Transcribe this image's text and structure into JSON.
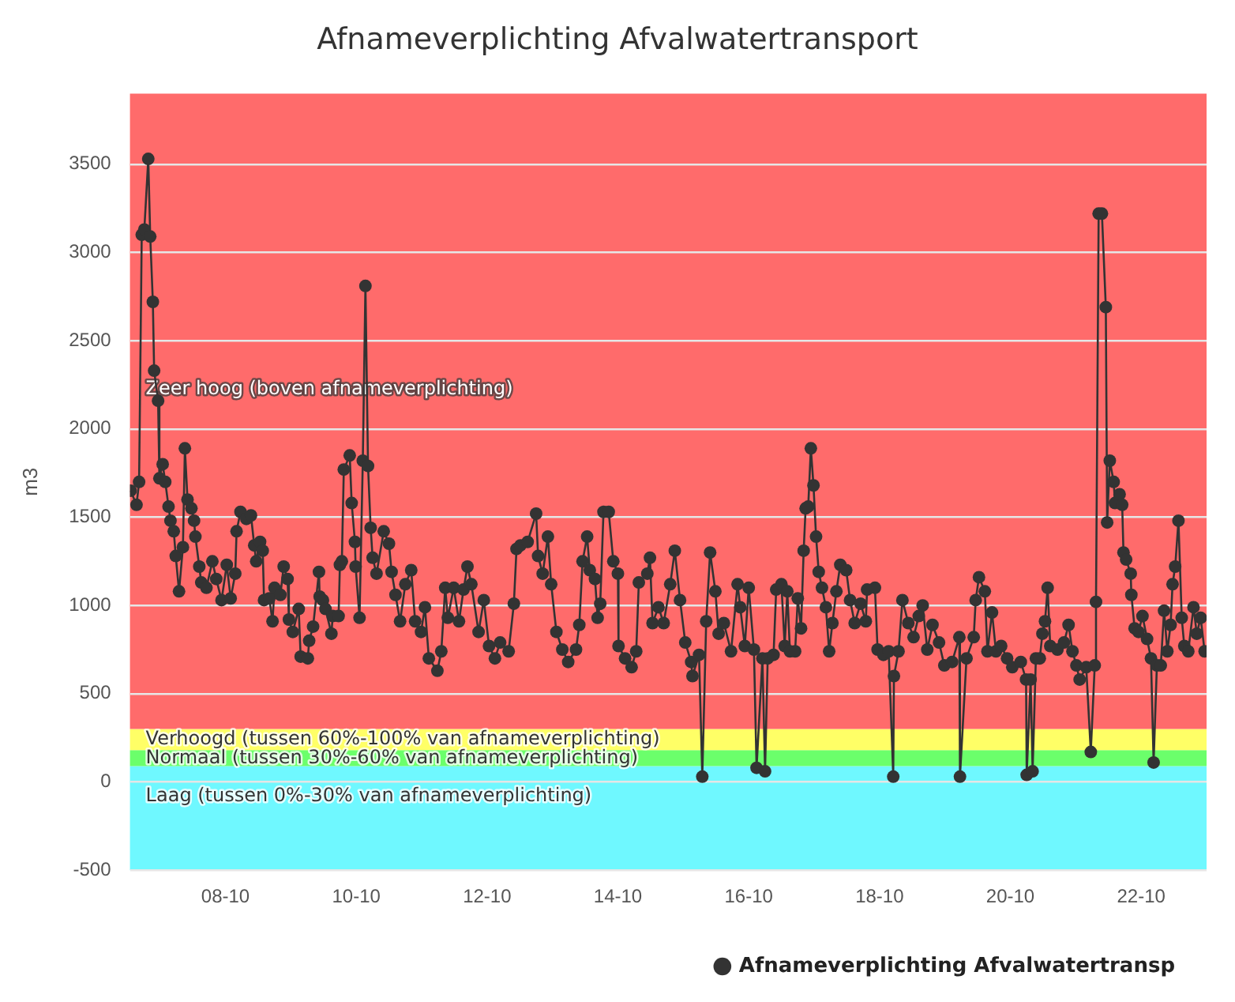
{
  "chart_data": {
    "type": "line",
    "title": "Afnameverplichting Afvalwatertransport",
    "ylabel": "m3",
    "xlim": [
      "--10-06T12:58",
      "--10-23T00:00"
    ],
    "xticks": [
      {
        "value": "--10-08",
        "label": "08-10"
      },
      {
        "value": "--10-10",
        "label": "10-10"
      },
      {
        "value": "--10-12",
        "label": "12-10"
      },
      {
        "value": "--10-14",
        "label": "14-10"
      },
      {
        "value": "--10-16",
        "label": "16-10"
      },
      {
        "value": "--10-18",
        "label": "18-10"
      },
      {
        "value": "--10-20",
        "label": "20-10"
      },
      {
        "value": "--10-22",
        "label": "22-10"
      }
    ],
    "ylim": [
      -500,
      3900
    ],
    "yticks": [
      -500,
      0,
      500,
      1000,
      1500,
      2000,
      2500,
      3000,
      3500
    ],
    "grid": "y",
    "legend": "bottom right",
    "marker": "circle",
    "line_style": "solid",
    "bands": [
      {
        "axis": "y",
        "from": -500,
        "to": 90,
        "label": "Laag (tussen 0%-30% van afnameverplichting)",
        "color": "#6ff8ff"
      },
      {
        "axis": "y",
        "from": 90,
        "to": 180,
        "label": "Normaal (tussen 30%-60% van afnameverplichting)",
        "color": "#6bff6b"
      },
      {
        "axis": "y",
        "from": 180,
        "to": 300,
        "label": "Verhoogd (tussen 60%-100% van afnameverplichting)",
        "color": "#ffff66"
      },
      {
        "axis": "y",
        "from": 300,
        "to": 3900,
        "label": "Zeer hoog (boven afnameverplichting)",
        "color": "#ff6b6b"
      }
    ],
    "series": [
      {
        "name": "Afnameverplichting Afvalwatertransp",
        "color": "#333333",
        "x": [
          "--10-06T13:12",
          "--10-06T15:22",
          "--10-06T16:19",
          "--10-06T17:17",
          "--10-06T18:14",
          "--10-06T19:41",
          "--10-06T20:24",
          "--10-06T21:22",
          "--10-06T21:50",
          "--10-06T23:17",
          "--10-06T23:46",
          "--10-07T00:58",
          "--10-07T01:55",
          "--10-07T03:07",
          "--10-07T03:50",
          "--10-07T05:02",
          "--10-07T05:46",
          "--10-07T06:58",
          "--10-07T08:24",
          "--10-07T09:07",
          "--10-07T10:05",
          "--10-07T11:31",
          "--10-07T12:29",
          "--10-07T12:58",
          "--10-07T14:24",
          "--10-07T15:07",
          "--10-07T17:02",
          "--10-07T19:12",
          "--10-07T20:38",
          "--10-07T22:34",
          "--10-08T00:29",
          "--10-08T01:55",
          "--10-08T03:36",
          "--10-08T04:05",
          "--10-08T05:31",
          "--10-08T07:41",
          "--10-08T09:22",
          "--10-08T10:34",
          "--10-08T11:17",
          "--10-08T12:43",
          "--10-08T13:41",
          "--10-08T14:10",
          "--10-08T16:05",
          "--10-08T17:17",
          "--10-08T18:00",
          "--10-08T20:10",
          "--10-08T21:22",
          "--10-08T22:48",
          "--10-08T23:17",
          "--10-09T00:43",
          "--10-09T02:53",
          "--10-09T03:36",
          "--10-09T06:14",
          "--10-09T06:43",
          "--10-09T08:10",
          "--10-09T10:19",
          "--10-09T10:34",
          "--10-09T11:46",
          "--10-09T12:43",
          "--10-09T14:53",
          "--10-09T15:22",
          "--10-09T17:31",
          "--10-09T18:00",
          "--10-09T18:43",
          "--10-09T19:26",
          "--10-09T21:36",
          "--10-09T22:19",
          "--10-09T23:31",
          "--10-09T23:46",
          "--10-10T01:12",
          "--10-10T02:24",
          "--10-10T03:22",
          "--10-10T04:19",
          "--10-10T05:17",
          "--10-10T06:00",
          "--10-10T07:26",
          "--10-10T10:05",
          "--10-10T12:00",
          "--10-10T12:58",
          "--10-10T14:24",
          "--10-10T16:05",
          "--10-10T18:00",
          "--10-10T20:10",
          "--10-10T21:36",
          "--10-10T23:46",
          "--10-11T01:12",
          "--10-11T02:38",
          "--10-11T05:46",
          "--10-11T07:12",
          "--10-11T08:38",
          "--10-11T09:36",
          "--10-11T11:46",
          "--10-11T13:41",
          "--10-11T15:22",
          "--10-11T16:48",
          "--10-11T18:14",
          "--10-11T20:53",
          "--10-11T22:48",
          "--10-12T00:43",
          "--10-12T02:53",
          "--10-12T04:48",
          "--10-12T07:55",
          "--10-12T09:50",
          "--10-12T10:48",
          "--10-12T12:14",
          "--10-12T14:53",
          "--10-12T18:00",
          "--10-12T18:43",
          "--10-12T20:24",
          "--10-12T22:19",
          "--10-12T23:31",
          "--10-13T01:26",
          "--10-13T03:36",
          "--10-13T05:46",
          "--10-13T08:38",
          "--10-13T09:50",
          "--10-13T11:02",
          "--10-13T12:43",
          "--10-13T13:41",
          "--10-13T15:36",
          "--10-13T16:34",
          "--10-13T17:31",
          "--10-13T18:43",
          "--10-13T20:38",
          "--10-13T22:19",
          "--10-14T00:00",
          "--10-14T00:14",
          "--10-14T02:38",
          "--10-14T05:02",
          "--10-14T06:43",
          "--10-14T07:41",
          "--10-14T10:48",
          "--10-14T11:46",
          "--10-14T12:43",
          "--10-14T14:53",
          "--10-14T16:48",
          "--10-14T19:12",
          "--10-14T20:53",
          "--10-14T22:48",
          "--10-15T00:43",
          "--10-15T02:53",
          "--10-15T03:22",
          "--10-15T05:46",
          "--10-15T06:58",
          "--10-15T08:24",
          "--10-15T09:50",
          "--10-15T11:46",
          "--10-15T12:58",
          "--10-15T14:53",
          "--10-15T17:31",
          "--10-15T19:55",
          "--10-15T20:53",
          "--10-15T22:34",
          "--10-16T00:00",
          "--10-16T01:55",
          "--10-16T02:53",
          "--10-16T05:02",
          "--10-16T06:00",
          "--10-16T06:58",
          "--10-16T09:07",
          "--10-16T10:05",
          "--10-16T12:00",
          "--10-16T13:12",
          "--10-16T14:10",
          "--10-16T15:07",
          "--10-16T17:02",
          "--10-16T18:00",
          "--10-16T19:12",
          "--10-16T20:10",
          "--10-16T20:53",
          "--10-16T21:50",
          "--10-16T22:48",
          "--10-16T23:46",
          "--10-17T00:43",
          "--10-17T01:41",
          "--10-17T02:53",
          "--10-17T04:19",
          "--10-17T05:31",
          "--10-17T06:43",
          "--10-17T08:10",
          "--10-17T09:36",
          "--10-17T11:46",
          "--10-17T13:12",
          "--10-17T14:53",
          "--10-17T17:02",
          "--10-17T18:58",
          "--10-17T19:26",
          "--10-17T22:19",
          "--10-17T23:17",
          "--10-18T01:26",
          "--10-18T03:22",
          "--10-18T05:02",
          "--10-18T05:17",
          "--10-18T06:58",
          "--10-18T08:24",
          "--10-18T10:34",
          "--10-18T12:29",
          "--10-18T14:24",
          "--10-18T15:50",
          "--10-18T17:31",
          "--10-18T19:26",
          "--10-18T21:50",
          "--10-18T23:46",
          "--10-19T02:38",
          "--10-19T05:17",
          "--10-19T05:31",
          "--10-19T07:55",
          "--10-19T10:34",
          "--10-19T11:17",
          "--10-19T12:29",
          "--10-19T14:38",
          "--10-19T15:36",
          "--10-19T17:17",
          "--10-19T18:43",
          "--10-19T20:38",
          "--10-19T22:48",
          "--10-20T00:43",
          "--10-20T03:50",
          "--10-20T05:46",
          "--10-20T06:00",
          "--10-20T07:26",
          "--10-20T08:10",
          "--10-20T09:22",
          "--10-20T10:48",
          "--10-20T11:46",
          "--10-20T12:43",
          "--10-20T13:41",
          "--10-20T14:38",
          "--10-20T17:17",
          "--10-20T19:41",
          "--10-20T21:22",
          "--10-20T22:48",
          "--10-21T00:14",
          "--10-21T01:26",
          "--10-21T03:50",
          "--10-21T05:31",
          "--10-21T06:58",
          "--10-21T07:26",
          "--10-21T08:24",
          "--10-21T09:36",
          "--10-21T11:02",
          "--10-21T11:31",
          "--10-21T12:29",
          "--10-21T13:55",
          "--10-21T14:24",
          "--10-21T16:05",
          "--10-21T17:02",
          "--10-21T17:31",
          "--10-21T18:29",
          "--10-21T20:10",
          "--10-21T20:24",
          "--10-21T21:36",
          "--10-21T23:02",
          "--10-22T00:29",
          "--10-22T02:10",
          "--10-22T03:36",
          "--10-22T04:34",
          "--10-22T05:46",
          "--10-22T07:12",
          "--10-22T08:24",
          "--10-22T09:36",
          "--10-22T10:48",
          "--10-22T11:31",
          "--10-22T12:29",
          "--10-22T13:41",
          "--10-22T14:53",
          "--10-22T15:50",
          "--10-22T17:17",
          "--10-22T19:12",
          "--10-22T20:24",
          "--10-22T21:50",
          "--10-22T23:17"
        ],
        "values": [
          1650,
          1570,
          1700,
          3100,
          3130,
          3530,
          3090,
          2720,
          2330,
          2160,
          1720,
          1800,
          1700,
          1560,
          1480,
          1420,
          1280,
          1080,
          1330,
          1890,
          1600,
          1550,
          1480,
          1390,
          1220,
          1130,
          1100,
          1250,
          1150,
          1030,
          1230,
          1040,
          1180,
          1420,
          1530,
          1490,
          1510,
          1340,
          1250,
          1360,
          1310,
          1030,
          1040,
          910,
          1100,
          1060,
          1220,
          1150,
          920,
          850,
          980,
          710,
          700,
          800,
          880,
          1190,
          1050,
          1030,
          980,
          840,
          940,
          940,
          1230,
          1250,
          1770,
          1850,
          1580,
          1360,
          1220,
          930,
          1820,
          2810,
          1790,
          1440,
          1270,
          1180,
          1420,
          1350,
          1190,
          1060,
          910,
          1120,
          1200,
          910,
          850,
          990,
          700,
          630,
          740,
          1100,
          930,
          1100,
          910,
          1090,
          1220,
          1120,
          850,
          1030,
          770,
          700,
          790,
          740,
          1010,
          1320,
          1340,
          1360,
          1520,
          1280,
          1180,
          1390,
          1120,
          850,
          750,
          680,
          750,
          890,
          1250,
          1390,
          1200,
          1150,
          930,
          1010,
          1530,
          1530,
          1250,
          1180,
          770,
          700,
          650,
          740,
          1130,
          1180,
          1270,
          900,
          990,
          900,
          1120,
          1310,
          1030,
          790,
          680,
          600,
          720,
          30,
          910,
          1300,
          1080,
          840,
          900,
          740,
          1120,
          990,
          770,
          1100,
          750,
          80,
          700,
          60,
          700,
          720,
          1090,
          1120,
          770,
          1080,
          740,
          740,
          1040,
          870,
          1310,
          1550,
          1560,
          1890,
          1680,
          1390,
          1190,
          1100,
          990,
          740,
          900,
          1080,
          1230,
          1200,
          1030,
          900,
          1010,
          910,
          1090,
          1100,
          750,
          720,
          740,
          30,
          600,
          740,
          1030,
          900,
          820,
          940,
          1000,
          750,
          890,
          790,
          660,
          680,
          820,
          30,
          700,
          820,
          1030,
          1160,
          1080,
          740,
          960,
          740,
          770,
          700,
          650,
          680,
          580,
          40,
          580,
          60,
          700,
          700,
          840,
          910,
          1100,
          770,
          750,
          790,
          890,
          740,
          660,
          580,
          650,
          170,
          660,
          1020,
          3220,
          3220,
          2690,
          1470,
          1820,
          1700,
          1580,
          1630,
          1570,
          1300,
          1260,
          1180,
          1060,
          870,
          850,
          940,
          810,
          700,
          110,
          660,
          660,
          970,
          740,
          890,
          1120,
          1220,
          1480,
          930,
          770,
          740,
          990,
          840,
          930,
          740
        ]
      }
    ]
  }
}
